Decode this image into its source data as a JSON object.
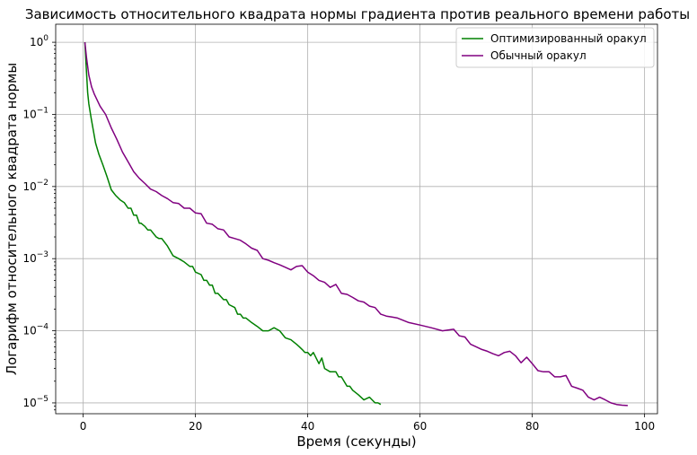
{
  "chart_data": {
    "type": "line",
    "title": "Зависимость относительного квадрата нормы градиента против реального времени работы",
    "xlabel": "Время (секунды)",
    "ylabel": "Логарифм относительного квадрата нормы",
    "xlim": [
      -4.9,
      102.3
    ],
    "ylim_log10": [
      -5.15,
      0.25
    ],
    "yscale": "log",
    "grid": true,
    "legend_position": "top-right",
    "x_ticks": [
      0,
      20,
      40,
      60,
      80,
      100
    ],
    "y_ticks": [
      {
        "base": "10",
        "exp": "0",
        "value": 1
      },
      {
        "base": "10",
        "exp": "−1",
        "value": 0.1
      },
      {
        "base": "10",
        "exp": "−2",
        "value": 0.01
      },
      {
        "base": "10",
        "exp": "−3",
        "value": 0.001
      },
      {
        "base": "10",
        "exp": "−4",
        "value": 0.0001
      },
      {
        "base": "10",
        "exp": "−5",
        "value": 1e-05
      }
    ],
    "series": [
      {
        "name": "Оптимизированный оракул",
        "color": "#008000",
        "x": [
          0.3,
          0.5,
          0.8,
          1.0,
          1.4,
          1.8,
          2.2,
          2.8,
          3.5,
          4.2,
          5.0,
          5.8,
          6.6,
          7.3,
          8.0,
          8.5,
          9.0,
          9.5,
          10.0,
          10.3,
          11.0,
          11.5,
          12.0,
          13.0,
          13.5,
          14.0,
          15.0,
          16.0,
          17.0,
          18.0,
          19.0,
          19.5,
          20.0,
          21.0,
          21.5,
          22.0,
          22.5,
          23.0,
          23.5,
          24.0,
          25.0,
          25.5,
          26.0,
          27.0,
          27.5,
          28.0,
          28.5,
          29.0,
          30.0,
          31.0,
          32.0,
          33.0,
          34.0,
          35.0,
          36.0,
          37.0,
          38.0,
          38.5,
          39.0,
          39.5,
          40.0,
          40.5,
          41.0,
          42.0,
          42.5,
          43.0,
          44.0,
          45.0,
          45.5,
          46.0,
          47.0,
          47.5,
          48.0,
          49.0,
          50.0,
          51.0,
          52.0,
          52.5,
          53.0
        ],
        "y": [
          1.0,
          0.5,
          0.2,
          0.14,
          0.09,
          0.06,
          0.04,
          0.028,
          0.02,
          0.014,
          0.009,
          0.0075,
          0.0065,
          0.006,
          0.005,
          0.005,
          0.004,
          0.004,
          0.0031,
          0.0031,
          0.0028,
          0.0025,
          0.0025,
          0.002,
          0.0019,
          0.0019,
          0.0015,
          0.0011,
          0.001,
          0.0009,
          0.00078,
          0.00078,
          0.00065,
          0.0006,
          0.0005,
          0.0005,
          0.00043,
          0.00043,
          0.00033,
          0.00033,
          0.00027,
          0.00027,
          0.00023,
          0.00021,
          0.00017,
          0.00017,
          0.00015,
          0.00015,
          0.00013,
          0.000115,
          0.0001,
          0.0001,
          0.00011,
          0.0001,
          8e-05,
          7.5e-05,
          6.5e-05,
          6e-05,
          5.5e-05,
          5e-05,
          5e-05,
          4.5e-05,
          5e-05,
          3.5e-05,
          4.2e-05,
          3e-05,
          2.7e-05,
          2.7e-05,
          2.3e-05,
          2.3e-05,
          1.7e-05,
          1.7e-05,
          1.5e-05,
          1.3e-05,
          1.1e-05,
          1.2e-05,
          1e-05,
          1e-05,
          9.5e-06
        ]
      },
      {
        "name": "Обычный оракул",
        "color": "#800080",
        "x": [
          0.3,
          0.6,
          1.0,
          1.5,
          2.0,
          3.0,
          4.0,
          5.0,
          6.0,
          7.0,
          8.0,
          9.0,
          10.0,
          11.0,
          12.0,
          13.0,
          14.0,
          15.0,
          16.0,
          17.0,
          18.0,
          19.0,
          20.0,
          21.0,
          22.0,
          23.0,
          24.0,
          25.0,
          26.0,
          27.0,
          28.0,
          29.0,
          30.0,
          31.0,
          32.0,
          33.0,
          34.0,
          35.0,
          36.0,
          37.0,
          38.0,
          39.0,
          40.0,
          41.0,
          42.0,
          43.0,
          44.0,
          45.0,
          46.0,
          47.0,
          48.0,
          49.0,
          50.0,
          51.0,
          52.0,
          53.0,
          54.0,
          55.0,
          56.0,
          58.0,
          60.0,
          62.0,
          64.0,
          66.0,
          67.0,
          68.0,
          69.0,
          70.0,
          71.0,
          72.0,
          73.0,
          74.0,
          75.0,
          76.0,
          77.0,
          78.0,
          79.0,
          80.0,
          81.0,
          82.0,
          83.0,
          84.0,
          85.0,
          86.0,
          87.0,
          88.0,
          89.0,
          90.0,
          91.0,
          92.0,
          93.0,
          94.0,
          95.0,
          96.0,
          97.0
        ],
        "y": [
          1.0,
          0.6,
          0.35,
          0.24,
          0.19,
          0.13,
          0.1,
          0.065,
          0.045,
          0.03,
          0.022,
          0.016,
          0.013,
          0.011,
          0.0092,
          0.0085,
          0.0075,
          0.0068,
          0.006,
          0.0058,
          0.005,
          0.005,
          0.0043,
          0.0042,
          0.0031,
          0.003,
          0.0026,
          0.0025,
          0.002,
          0.0019,
          0.0018,
          0.0016,
          0.0014,
          0.0013,
          0.001,
          0.00095,
          0.00088,
          0.00082,
          0.00076,
          0.0007,
          0.00078,
          0.0008,
          0.00065,
          0.00058,
          0.0005,
          0.00047,
          0.0004,
          0.00044,
          0.00033,
          0.00032,
          0.00029,
          0.00026,
          0.00025,
          0.00022,
          0.00021,
          0.00017,
          0.00016,
          0.000155,
          0.00015,
          0.00013,
          0.00012,
          0.00011,
          0.0001,
          0.000105,
          8.5e-05,
          8.2e-05,
          6.5e-05,
          6e-05,
          5.5e-05,
          5.2e-05,
          4.8e-05,
          4.5e-05,
          5e-05,
          5.2e-05,
          4.5e-05,
          3.6e-05,
          4.3e-05,
          3.5e-05,
          2.8e-05,
          2.7e-05,
          2.7e-05,
          2.3e-05,
          2.3e-05,
          2.4e-05,
          1.7e-05,
          1.6e-05,
          1.5e-05,
          1.2e-05,
          1.1e-05,
          1.2e-05,
          1.1e-05,
          1e-05,
          9.5e-06,
          9.3e-06,
          9.2e-06
        ]
      }
    ]
  }
}
